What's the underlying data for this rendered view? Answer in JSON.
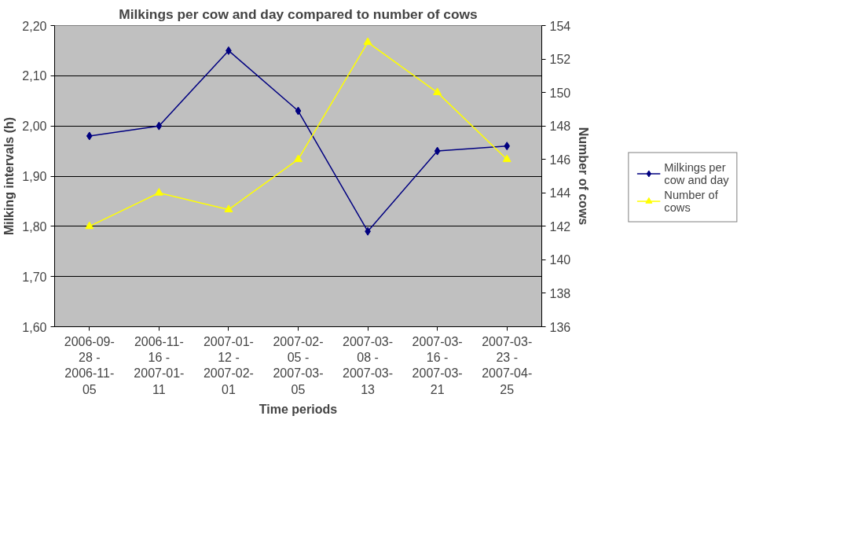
{
  "chart_data": {
    "type": "line",
    "title": "Milkings per cow and day compared to number of cows",
    "xlabel": "Time periods",
    "ylabel": "Milking intervals (h)",
    "y2label": "Number of cows",
    "categories": [
      "2006-09-28 - 2006-11-05",
      "2006-11-16 - 2007-01-11",
      "2007-01-12 - 2007-02-01",
      "2007-02-05 - 2007-03-05",
      "2007-03-08 - 2007-03-13",
      "2007-03-16 - 2007-03-21",
      "2007-03-23 - 2007-04-25"
    ],
    "series": [
      {
        "name": "Milkings per cow and day",
        "color": "#000080",
        "marker": "diamond",
        "values": [
          1.98,
          2.0,
          2.15,
          2.03,
          1.79,
          1.95,
          1.96
        ]
      },
      {
        "name": "Number of cows",
        "color": "#ffff00",
        "marker": "triangle",
        "axis": "y2",
        "values": [
          142,
          144,
          143,
          146,
          153,
          150,
          146
        ]
      }
    ],
    "ylim": [
      1.6,
      2.2
    ],
    "yticks": [
      {
        "value": 1.6,
        "label": "1,60"
      },
      {
        "value": 1.7,
        "label": "1,70"
      },
      {
        "value": 1.8,
        "label": "1,80"
      },
      {
        "value": 1.9,
        "label": "1,90"
      },
      {
        "value": 2.0,
        "label": "2,00"
      },
      {
        "value": 2.1,
        "label": "2,10"
      },
      {
        "value": 2.2,
        "label": "2,20"
      }
    ],
    "y2lim": [
      136,
      154
    ],
    "y2ticks": [
      136,
      138,
      140,
      142,
      144,
      146,
      148,
      150,
      152,
      154
    ],
    "grid": "y",
    "legend": "right"
  }
}
